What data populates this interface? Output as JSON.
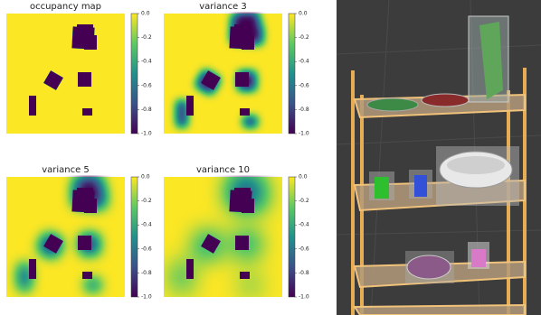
{
  "chart_data": [
    {
      "type": "heatmap",
      "title": "occupancy map",
      "ylim": [
        -1,
        0
      ],
      "yticks": [
        {
          "value": 0,
          "label": "0.0"
        },
        -0.2,
        -0.4,
        -0.6,
        -0.8,
        {
          "value": -1,
          "label": "-1.0"
        }
      ]
    },
    {
      "type": "heatmap",
      "title": "variance 3",
      "ylim": [
        -1,
        0
      ],
      "yticks": [
        {
          "value": 0,
          "label": "0.0"
        },
        -0.2,
        -0.4,
        -0.6,
        -0.8,
        {
          "value": -1,
          "label": "-1.0"
        }
      ]
    },
    {
      "type": "heatmap",
      "title": "variance 5",
      "ylim": [
        -1,
        0
      ],
      "yticks": [
        {
          "value": 0,
          "label": "0.0"
        },
        -0.2,
        -0.4,
        -0.6,
        -0.8,
        {
          "value": -1,
          "label": "-1.0"
        }
      ]
    },
    {
      "type": "heatmap",
      "title": "variance 10",
      "ylim": [
        -1,
        0
      ],
      "yticks": [
        {
          "value": 0,
          "label": "0.0"
        },
        -0.2,
        -0.4,
        -0.6,
        -0.8,
        {
          "value": -1,
          "label": "-1.0"
        }
      ]
    }
  ]
}
